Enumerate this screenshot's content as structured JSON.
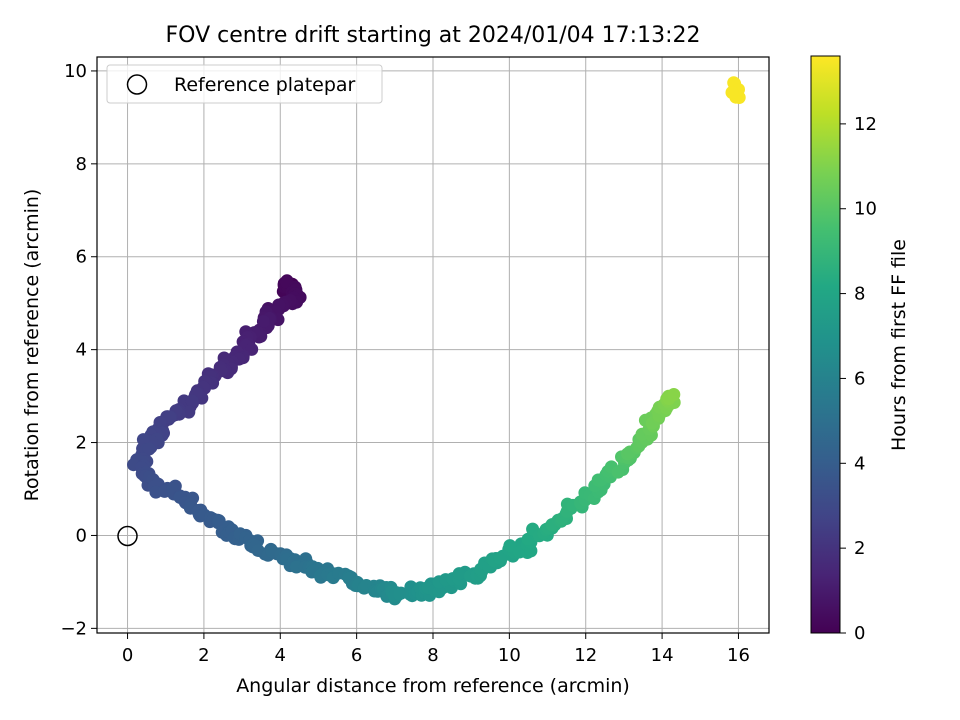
{
  "chart_data": {
    "type": "scatter",
    "title": "FOV centre drift starting at 2024/01/04 17:13:22",
    "xlabel": "Angular distance from reference (arcmin)",
    "ylabel": "Rotation from reference (arcmin)",
    "xlim": [
      -0.8,
      16.8
    ],
    "ylim": [
      -2.1,
      10.3
    ],
    "xticks": [
      0,
      2,
      4,
      6,
      8,
      10,
      12,
      14,
      16
    ],
    "yticks": [
      -2,
      0,
      2,
      4,
      6,
      8,
      10
    ],
    "grid": true,
    "legend": {
      "position": "upper left",
      "entries": [
        "Reference platepar"
      ]
    },
    "reference_point": {
      "x": 0,
      "y": 0,
      "label": "Reference platepar"
    },
    "colorbar": {
      "label": "Hours from first FF file",
      "range": [
        0,
        13.6
      ],
      "ticks": [
        0,
        2,
        4,
        6,
        8,
        10,
        12
      ],
      "colormap": "viridis"
    },
    "track": [
      {
        "hours": 0.0,
        "x": 4.3,
        "y": 5.3
      },
      {
        "hours": 0.2,
        "x": 4.1,
        "y": 5.4
      },
      {
        "hours": 0.4,
        "x": 4.5,
        "y": 5.15
      },
      {
        "hours": 0.7,
        "x": 3.8,
        "y": 4.8
      },
      {
        "hours": 1.0,
        "x": 3.5,
        "y": 4.5
      },
      {
        "hours": 1.3,
        "x": 3.1,
        "y": 4.1
      },
      {
        "hours": 1.6,
        "x": 2.7,
        "y": 3.7
      },
      {
        "hours": 1.9,
        "x": 2.2,
        "y": 3.3
      },
      {
        "hours": 2.2,
        "x": 1.6,
        "y": 2.9
      },
      {
        "hours": 2.5,
        "x": 1.1,
        "y": 2.5
      },
      {
        "hours": 2.8,
        "x": 0.6,
        "y": 2.1
      },
      {
        "hours": 3.0,
        "x": 0.3,
        "y": 1.6
      },
      {
        "hours": 3.2,
        "x": 0.5,
        "y": 1.2
      },
      {
        "hours": 3.5,
        "x": 1.3,
        "y": 0.9
      },
      {
        "hours": 3.8,
        "x": 2.0,
        "y": 0.45
      },
      {
        "hours": 4.1,
        "x": 2.8,
        "y": 0.05
      },
      {
        "hours": 4.5,
        "x": 3.5,
        "y": -0.3
      },
      {
        "hours": 4.9,
        "x": 4.3,
        "y": -0.55
      },
      {
        "hours": 5.3,
        "x": 5.0,
        "y": -0.75
      },
      {
        "hours": 5.7,
        "x": 5.8,
        "y": -0.95
      },
      {
        "hours": 6.1,
        "x": 6.4,
        "y": -1.15
      },
      {
        "hours": 6.6,
        "x": 7.1,
        "y": -1.25
      },
      {
        "hours": 7.0,
        "x": 7.8,
        "y": -1.2
      },
      {
        "hours": 7.3,
        "x": 8.6,
        "y": -1.0
      },
      {
        "hours": 7.6,
        "x": 9.3,
        "y": -0.75
      },
      {
        "hours": 7.9,
        "x": 10.0,
        "y": -0.4
      },
      {
        "hours": 8.3,
        "x": 10.8,
        "y": 0.0
      },
      {
        "hours": 8.7,
        "x": 11.5,
        "y": 0.45
      },
      {
        "hours": 9.2,
        "x": 12.2,
        "y": 0.95
      },
      {
        "hours": 9.7,
        "x": 12.9,
        "y": 1.5
      },
      {
        "hours": 10.2,
        "x": 13.4,
        "y": 2.0
      },
      {
        "hours": 10.7,
        "x": 13.9,
        "y": 2.6
      },
      {
        "hours": 11.2,
        "x": 14.3,
        "y": 3.1
      },
      {
        "hours": 13.5,
        "x": 15.9,
        "y": 9.55
      }
    ]
  }
}
